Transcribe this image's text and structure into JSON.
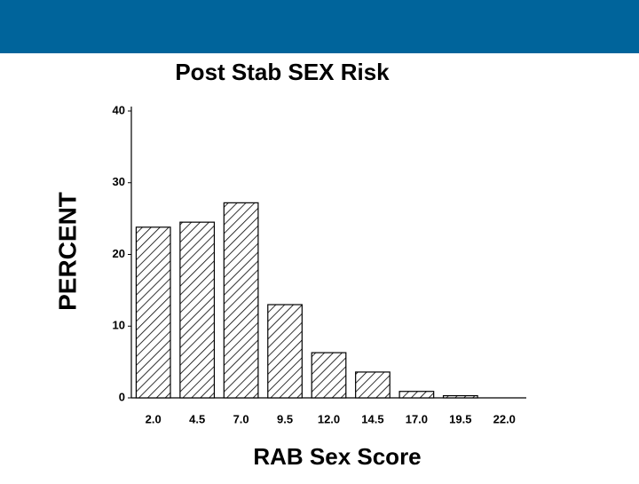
{
  "chart_data": {
    "type": "bar",
    "title": "Post  Stab  SEX  Risk",
    "x_label": "RAB  Sex  Score",
    "y_label": "PERCENT",
    "categories": [
      "2.0",
      "4.5",
      "7.0",
      "9.5",
      "12.0",
      "14.5",
      "17.0",
      "19.5",
      "22.0"
    ],
    "values": [
      23.8,
      24.5,
      27.2,
      13.0,
      6.3,
      3.6,
      0.9,
      0.3,
      0
    ],
    "color": "#000000",
    "ylim": [
      0,
      40
    ],
    "yticks": [
      0,
      10,
      20,
      30,
      40
    ],
    "grid": false
  }
}
